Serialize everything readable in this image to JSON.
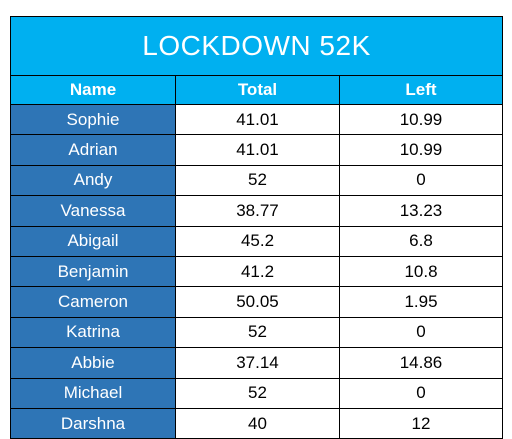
{
  "title": "LOCKDOWN 52K",
  "columns": [
    "Name",
    "Total",
    "Left"
  ],
  "rows": [
    {
      "name": "Sophie",
      "total": "41.01",
      "left": "10.99"
    },
    {
      "name": "Adrian",
      "total": "41.01",
      "left": "10.99"
    },
    {
      "name": "Andy",
      "total": "52",
      "left": "0"
    },
    {
      "name": "Vanessa",
      "total": "38.77",
      "left": "13.23"
    },
    {
      "name": "Abigail",
      "total": "45.2",
      "left": "6.8"
    },
    {
      "name": "Benjamin",
      "total": "41.2",
      "left": "10.8"
    },
    {
      "name": "Cameron",
      "total": "50.05",
      "left": "1.95"
    },
    {
      "name": "Katrina",
      "total": "52",
      "left": "0"
    },
    {
      "name": "Abbie",
      "total": "37.14",
      "left": "14.86"
    },
    {
      "name": "Michael",
      "total": "52",
      "left": "0"
    },
    {
      "name": "Darshna",
      "total": "40",
      "left": "12"
    }
  ],
  "colors": {
    "header_bg": "#00b0f0",
    "name_bg": "#2e75b6",
    "header_text": "#ffffff"
  }
}
